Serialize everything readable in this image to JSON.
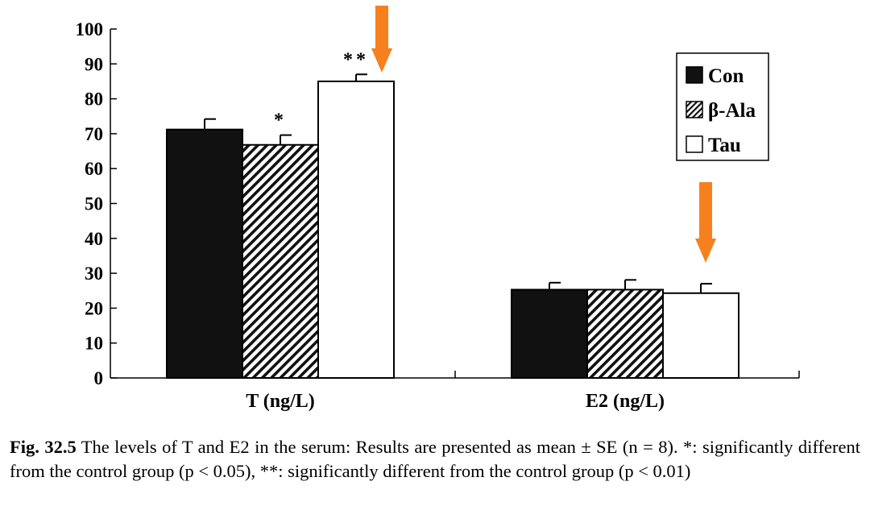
{
  "chart_data": {
    "type": "bar",
    "categories": [
      "T (ng/L)",
      "E2 (ng/L)"
    ],
    "series": [
      {
        "name": "Con",
        "values": [
          71.2,
          25.3
        ],
        "errors": [
          3.0,
          2.0
        ],
        "fill": "#111111",
        "pattern": "solid",
        "significance": [
          "",
          ""
        ]
      },
      {
        "name": "β-Ala",
        "values": [
          66.8,
          25.3
        ],
        "errors": [
          2.8,
          2.8
        ],
        "fill": "#ffffff",
        "pattern": "hatch",
        "significance": [
          "*",
          ""
        ]
      },
      {
        "name": "Tau",
        "values": [
          85.0,
          24.3
        ],
        "errors": [
          2.0,
          2.7
        ],
        "fill": "#ffffff",
        "pattern": "open",
        "significance": [
          "**",
          ""
        ]
      }
    ],
    "ylim": [
      0,
      100
    ],
    "yticks": [
      0,
      10,
      20,
      30,
      40,
      50,
      60,
      70,
      80,
      90,
      100
    ],
    "ylabel": "",
    "xlabel": "",
    "legend_position": "top-right",
    "annotations": [
      {
        "type": "arrow",
        "target": "Tau T (ng/L)",
        "color": "#f7801e"
      },
      {
        "type": "arrow",
        "target": "Tau E2 (ng/L)",
        "color": "#f7801e"
      }
    ]
  },
  "caption": {
    "label": "Fig. 32.5",
    "text": "The levels of T and E2 in the serum: Results are presented as mean ± SE (n = 8). *: significantly different from the control group (p < 0.05), **: significantly different from the control group (p < 0.01)"
  }
}
